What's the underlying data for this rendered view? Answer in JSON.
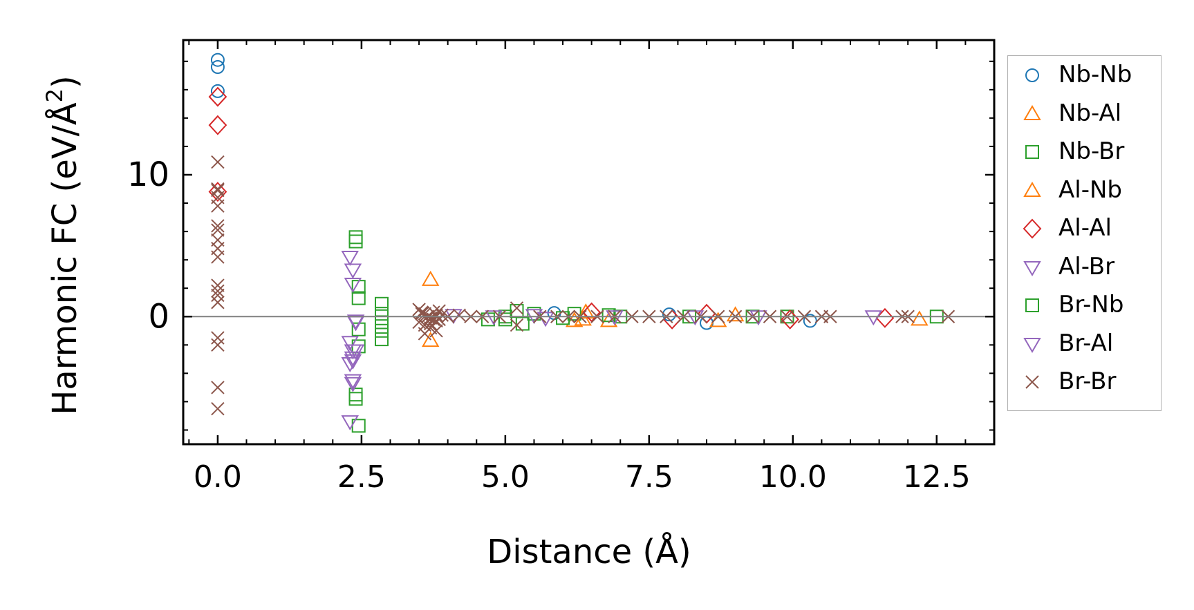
{
  "chart_data": {
    "type": "scatter",
    "xlabel": "Distance (Å)",
    "ylabel_main": "Harmonic FC (eV/Å",
    "ylabel_sup": "2",
    "ylabel_close": ")",
    "xlim": [
      -0.6,
      13.5
    ],
    "ylim": [
      -9.0,
      19.5
    ],
    "x_ticks": [
      0.0,
      2.5,
      5.0,
      7.5,
      10.0,
      12.5
    ],
    "x_tick_labels": [
      "0.0",
      "2.5",
      "5.0",
      "7.5",
      "10.0",
      "12.5"
    ],
    "y_ticks": [
      0,
      10
    ],
    "y_tick_labels": [
      "0",
      "10"
    ],
    "zero_line": true,
    "grid": false,
    "legend_position": "outside-right",
    "series": [
      {
        "name": "Nb-Nb",
        "marker": "circle",
        "color": "#1f77b4",
        "x": [
          0.0,
          0.0,
          0.0,
          5.85,
          7.85,
          8.5,
          10.3
        ],
        "y": [
          18.1,
          17.6,
          15.9,
          0.25,
          0.15,
          -0.45,
          -0.3
        ]
      },
      {
        "name": "Nb-Al",
        "marker": "triangle-up",
        "color": "#ff7f0e",
        "x": [
          3.7,
          3.7,
          6.2,
          6.4,
          6.8,
          8.7,
          12.2
        ],
        "y": [
          2.6,
          -1.7,
          -0.3,
          0.3,
          -0.3,
          -0.3,
          -0.2
        ]
      },
      {
        "name": "Nb-Br",
        "marker": "square",
        "color": "#2ca02c",
        "x": [
          2.4,
          2.4,
          2.45,
          2.45,
          2.45,
          2.45,
          2.4,
          2.4,
          2.45,
          2.85,
          2.85,
          2.85,
          2.85,
          2.85,
          4.7,
          5.0,
          5.2,
          5.3,
          5.5,
          6.2,
          6.8,
          7.0,
          8.2,
          9.3,
          9.9,
          12.5
        ],
        "y": [
          5.6,
          5.3,
          2.1,
          1.3,
          -0.9,
          -2.1,
          -5.5,
          -5.8,
          -7.7,
          0.9,
          0.2,
          -0.4,
          -1.0,
          -1.6,
          -0.2,
          -0.2,
          0.4,
          -0.5,
          0.2,
          0.2,
          0.1,
          0.0,
          0.0,
          0.0,
          0.0,
          0.0
        ]
      },
      {
        "name": "Al-Nb",
        "marker": "triangle-up",
        "color": "#ff7f0e",
        "x": [
          6.35,
          9.0
        ],
        "y": [
          -0.2,
          0.1
        ]
      },
      {
        "name": "Al-Al",
        "marker": "diamond",
        "color": "#d62728",
        "x": [
          0.0,
          0.0,
          0.0,
          6.5,
          7.9,
          8.5,
          9.95,
          11.6
        ],
        "y": [
          15.5,
          13.5,
          8.8,
          0.3,
          -0.2,
          0.2,
          -0.2,
          -0.1
        ]
      },
      {
        "name": "Al-Br",
        "marker": "triangle-down",
        "color": "#9467bd",
        "x": [
          2.3,
          2.35,
          2.35,
          2.4,
          2.3,
          2.35,
          2.35,
          2.3,
          2.35,
          2.3,
          2.35
        ],
        "y": [
          4.2,
          3.3,
          2.3,
          -0.4,
          -1.8,
          -2.4,
          -2.9,
          -3.3,
          -4.7,
          -7.4,
          -3.1
        ]
      },
      {
        "name": "Br-Nb",
        "marker": "square",
        "color": "#2ca02c",
        "x": [
          5.0,
          6.0
        ],
        "y": [
          0.0,
          -0.1
        ]
      },
      {
        "name": "Br-Al",
        "marker": "triangle-down",
        "color": "#9467bd",
        "x": [
          2.4,
          2.35,
          2.4,
          4.1,
          4.8,
          5.5,
          5.7,
          6.9,
          8.3,
          9.4,
          11.4
        ],
        "y": [
          -0.3,
          -4.5,
          -2.4,
          0.1,
          0.0,
          0.1,
          -0.1,
          0.0,
          0.0,
          0.0,
          0.0
        ]
      },
      {
        "name": "Br-Br",
        "marker": "x",
        "color": "#8c564b",
        "x": [
          0.0,
          0.0,
          0.0,
          0.0,
          0.0,
          0.0,
          0.0,
          0.0,
          0.0,
          0.0,
          0.0,
          0.0,
          0.0,
          0.0,
          0.0,
          0.0,
          0.0,
          0.0,
          3.5,
          3.55,
          3.6,
          3.65,
          3.7,
          3.75,
          3.8,
          3.85,
          3.9,
          3.5,
          3.6,
          3.7,
          3.8,
          3.55,
          3.65,
          3.75,
          3.85,
          3.6,
          3.7,
          3.8,
          4.0,
          4.2,
          4.4,
          4.6,
          4.9,
          5.2,
          5.2,
          5.6,
          5.9,
          6.1,
          6.3,
          6.6,
          6.9,
          7.2,
          7.5,
          7.8,
          8.1,
          8.4,
          8.7,
          9.0,
          9.3,
          9.6,
          9.9,
          10.2,
          10.5,
          10.65,
          11.9,
          12.0,
          12.7
        ],
        "y": [
          10.9,
          9.0,
          8.4,
          7.8,
          6.4,
          6.1,
          5.4,
          4.8,
          4.2,
          2.2,
          1.8,
          1.5,
          1.0,
          -1.5,
          -2.0,
          -5.0,
          -6.5,
          8.9,
          0.5,
          0.3,
          0.2,
          0.0,
          -0.1,
          -0.2,
          -0.3,
          0.4,
          0.1,
          -0.4,
          -0.6,
          -0.8,
          -1.0,
          0.2,
          0.0,
          0.3,
          -0.2,
          -1.2,
          -0.5,
          0.1,
          0.0,
          0.1,
          0.0,
          0.0,
          0.0,
          0.6,
          -0.6,
          0.0,
          0.0,
          0.0,
          0.0,
          0.0,
          0.0,
          0.0,
          0.0,
          0.0,
          0.0,
          0.0,
          0.0,
          0.0,
          0.0,
          0.0,
          0.0,
          0.0,
          0.0,
          0.0,
          0.0,
          0.0,
          0.0
        ]
      }
    ]
  }
}
